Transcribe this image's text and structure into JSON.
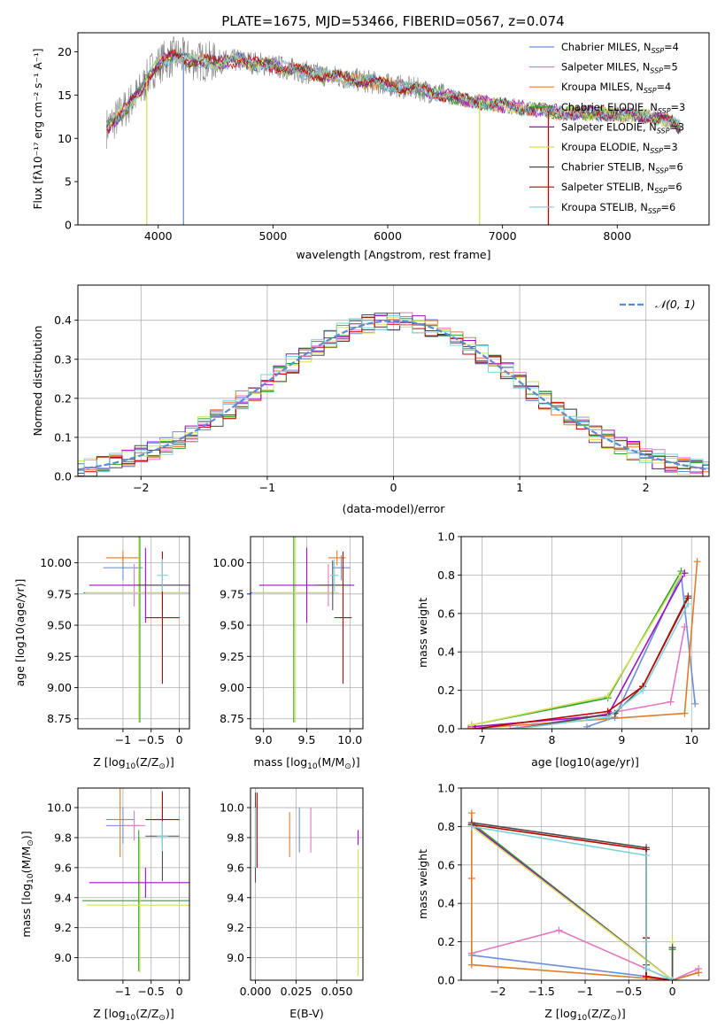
{
  "title": "PLATE=1675, MJD=53466, FIBERID=0567, z=0.074",
  "colors": {
    "Chabrier MILES": "#6b8fd6",
    "Salpeter MILES": "#e377c2",
    "Kroupa MILES": "#e07b2a",
    "Chabrier ELODIE": "#2ca02c",
    "Salpeter ELODIE": "#9b10c8",
    "Kroupa ELODIE": "#d4e157",
    "Chabrier STELIB": "#4d4d4d",
    "Salpeter STELIB": "#c00000",
    "Kroupa STELIB": "#7ad3d9",
    "data": "#808080",
    "normal": "#5b8bd6"
  },
  "chart_data": [
    {
      "id": "spectrum",
      "type": "line",
      "xlabel": "wavelength [Angstrom, rest frame]",
      "ylabel": "Flux [fλ10⁻¹⁷ erg cm⁻² s⁻¹ A⁻¹]",
      "xlim": [
        3300,
        8800
      ],
      "ylim": [
        0,
        22.2
      ],
      "xticks": [
        4000,
        5000,
        6000,
        7000,
        8000
      ],
      "yticks": [
        0,
        5,
        10,
        15,
        20
      ],
      "grid": false,
      "legend": "top-right",
      "legend_entries": [
        {
          "base": "Chabrier MILES, N",
          "n": "4"
        },
        {
          "base": "Salpeter MILES, N",
          "n": "5"
        },
        {
          "base": "Kroupa MILES, N",
          "n": "4"
        },
        {
          "base": "Chabrier ELODIE, N",
          "n": "3"
        },
        {
          "base": "Salpeter ELODIE, N",
          "n": "3"
        },
        {
          "base": "Kroupa ELODIE, N",
          "n": "3"
        },
        {
          "base": "Chabrier STELIB, N",
          "n": "6"
        },
        {
          "base": "Salpeter STELIB, N",
          "n": "6"
        },
        {
          "base": "Kroupa STELIB, N",
          "n": "6"
        }
      ],
      "legend_sub": "SSP",
      "continuum": [
        [
          3550,
          11.2
        ],
        [
          3650,
          12.5
        ],
        [
          3750,
          14.0
        ],
        [
          3850,
          15.5
        ],
        [
          3950,
          18.0
        ],
        [
          4050,
          19.0
        ],
        [
          4150,
          19.5
        ],
        [
          4300,
          19.0
        ],
        [
          4500,
          18.8
        ],
        [
          4700,
          19.0
        ],
        [
          5000,
          18.4
        ],
        [
          5300,
          17.6
        ],
        [
          5600,
          17.0
        ],
        [
          6000,
          16.2
        ],
        [
          6300,
          15.6
        ],
        [
          6600,
          14.6
        ],
        [
          7000,
          13.8
        ],
        [
          7500,
          13.0
        ],
        [
          8000,
          12.8
        ],
        [
          8300,
          12.5
        ],
        [
          8450,
          12.0
        ],
        [
          8550,
          11.3
        ]
      ],
      "spikes": [
        [
          3900,
          0
        ],
        [
          4220,
          0
        ],
        [
          6800,
          0
        ],
        [
          7400,
          0
        ]
      ]
    },
    {
      "id": "residuals",
      "type": "histogram",
      "xlabel": "(data-model)/error",
      "ylabel": "Normed distribution",
      "xlim": [
        -2.5,
        2.5
      ],
      "ylim": [
        0,
        0.49
      ],
      "xticks": [
        -2,
        -1,
        0,
        1,
        2
      ],
      "yticks": [
        0.0,
        0.1,
        0.2,
        0.3,
        0.4
      ],
      "grid": true,
      "legend": "top-right",
      "normal_label": "𝒩(0, 1)",
      "bin_width": 0.1
    },
    {
      "id": "age_vs_Z",
      "type": "errorbar",
      "xlabel_base": "Z [log",
      "xlabel_tail": "(Z/Z",
      "ylabel": "age  [log10(age/yr)]",
      "xlim": [
        -1.8,
        0.18
      ],
      "ylim": [
        8.67,
        10.21
      ],
      "xticks": [
        -1,
        -0.5,
        0
      ],
      "yticks": [
        8.75,
        9.0,
        9.25,
        9.5,
        9.75,
        10.0
      ],
      "points": [
        {
          "series": "Chabrier MILES",
          "x": -1.0,
          "y": 9.96,
          "xerr": 0.35,
          "yerr": 0.1
        },
        {
          "series": "Kroupa MILES",
          "x": -1.0,
          "y": 10.04,
          "xerr": 0.3,
          "yerr": 0.06
        },
        {
          "series": "Salpeter MILES",
          "x": -0.8,
          "y": 9.82,
          "xerr": 0.2,
          "yerr": 0.17
        },
        {
          "series": "Chabrier ELODIE",
          "x": -0.7,
          "y": 9.76,
          "xerr": 1.0,
          "yerr": 1.04
        },
        {
          "series": "Kroupa ELODIE",
          "x": -0.72,
          "y": 9.76,
          "xerr": 0.95,
          "yerr": 1.04
        },
        {
          "series": "Salpeter ELODIE",
          "x": -0.6,
          "y": 9.82,
          "xerr": 1.0,
          "yerr": 0.3
        },
        {
          "series": "Chabrier STELIB",
          "x": -0.3,
          "y": 9.82,
          "xerr": 0.45,
          "yerr": 0.2
        },
        {
          "series": "Salpeter STELIB",
          "x": -0.3,
          "y": 9.56,
          "xerr": 0.3,
          "yerr": 0.53
        },
        {
          "series": "Kroupa STELIB",
          "x": -0.3,
          "y": 9.9,
          "xerr": 0.1,
          "yerr": 0.13
        }
      ]
    },
    {
      "id": "age_vs_mass",
      "type": "errorbar",
      "xlabel_base": "mass [log",
      "xlabel_tail": "(M/M",
      "ylabel": "",
      "xlim": [
        8.85,
        10.15
      ],
      "ylim": [
        8.67,
        10.21
      ],
      "xticks": [
        9.0,
        9.5,
        10.0
      ],
      "yticks": [
        8.75,
        9.0,
        9.25,
        9.5,
        9.75,
        10.0
      ],
      "points": [
        {
          "series": "Chabrier MILES",
          "x": 9.9,
          "y": 9.96,
          "xerr": 0.1,
          "yerr": 0.1
        },
        {
          "series": "Kroupa MILES",
          "x": 9.85,
          "y": 10.04,
          "xerr": 0.1,
          "yerr": 0.06
        },
        {
          "series": "Salpeter MILES",
          "x": 9.75,
          "y": 9.82,
          "xerr": 0.1,
          "yerr": 0.17
        },
        {
          "series": "Chabrier ELODIE",
          "x": 9.35,
          "y": 9.76,
          "xerr": 0.5,
          "yerr": 1.04
        },
        {
          "series": "Kroupa ELODIE",
          "x": 9.37,
          "y": 9.76,
          "xerr": 0.5,
          "yerr": 1.04
        },
        {
          "series": "Salpeter ELODIE",
          "x": 9.5,
          "y": 9.82,
          "xerr": 0.55,
          "yerr": 0.3
        },
        {
          "series": "Chabrier STELIB",
          "x": 9.8,
          "y": 9.82,
          "xerr": 0.2,
          "yerr": 0.2
        },
        {
          "series": "Salpeter STELIB",
          "x": 9.92,
          "y": 9.56,
          "xerr": 0.1,
          "yerr": 0.53
        },
        {
          "series": "Kroupa STELIB",
          "x": 9.82,
          "y": 9.9,
          "xerr": 0.05,
          "yerr": 0.13
        }
      ]
    },
    {
      "id": "massweight_vs_age",
      "type": "line",
      "xlabel": "age  [log10(age/yr)]",
      "ylabel": "mass weight",
      "xlim": [
        6.7,
        10.25
      ],
      "ylim": [
        0,
        1
      ],
      "xticks": [
        7,
        8,
        9,
        10
      ],
      "yticks": [
        0.0,
        0.2,
        0.4,
        0.6,
        0.8,
        1.0
      ],
      "grid": true,
      "series": [
        {
          "name": "Chabrier MILES",
          "x": [
            8.5,
            8.9,
            9.85,
            10.05
          ],
          "y": [
            0.01,
            0.06,
            0.8,
            0.13
          ]
        },
        {
          "name": "Salpeter MILES",
          "x": [
            7.4,
            8.5,
            9.7,
            9.9
          ],
          "y": [
            0.0,
            0.06,
            0.14,
            0.53
          ]
        },
        {
          "name": "Kroupa MILES",
          "x": [
            6.8,
            9.9,
            10.08
          ],
          "y": [
            0.0,
            0.08,
            0.87
          ]
        },
        {
          "name": "Chabrier ELODIE",
          "x": [
            6.85,
            8.8,
            9.85
          ],
          "y": [
            0.02,
            0.16,
            0.82
          ]
        },
        {
          "name": "Salpeter ELODIE",
          "x": [
            6.85,
            8.8,
            9.9
          ],
          "y": [
            0.01,
            0.07,
            0.81
          ]
        },
        {
          "name": "Kroupa ELODIE",
          "x": [
            6.85,
            8.8,
            9.85
          ],
          "y": [
            0.02,
            0.17,
            0.8
          ]
        },
        {
          "name": "Chabrier STELIB",
          "x": [
            7.5,
            8.9,
            9.3,
            9.95
          ],
          "y": [
            0.0,
            0.08,
            0.22,
            0.69
          ]
        },
        {
          "name": "Salpeter STELIB",
          "x": [
            6.9,
            8.8,
            9.3,
            9.95
          ],
          "y": [
            0.0,
            0.09,
            0.22,
            0.68
          ]
        },
        {
          "name": "Kroupa STELIB",
          "x": [
            7.5,
            8.8,
            9.3,
            9.95
          ],
          "y": [
            0.0,
            0.06,
            0.2,
            0.65
          ]
        }
      ]
    },
    {
      "id": "mass_vs_Z",
      "type": "errorbar",
      "xlabel_base": "Z [log",
      "xlabel_tail": "(Z/Z",
      "ylabel_base": "mass [log",
      "ylabel_tail": "(M/M",
      "xlim": [
        -1.8,
        0.18
      ],
      "ylim": [
        8.85,
        10.13
      ],
      "xticks": [
        -1,
        -0.5,
        0
      ],
      "yticks": [
        9.0,
        9.2,
        9.4,
        9.6,
        9.8,
        10.0
      ],
      "points": [
        {
          "series": "Chabrier MILES",
          "x": -1.0,
          "y": 9.88,
          "xerr": 0.3,
          "yerr": 0.12
        },
        {
          "series": "Kroupa MILES",
          "x": -1.05,
          "y": 9.92,
          "xerr": 0.25,
          "yerr": 0.25
        },
        {
          "series": "Salpeter MILES",
          "x": -0.8,
          "y": 9.88,
          "xerr": 0.2,
          "yerr": 0.1
        },
        {
          "series": "Chabrier ELODIE",
          "x": -0.72,
          "y": 9.38,
          "xerr": 1.0,
          "yerr": 0.47
        },
        {
          "series": "Kroupa ELODIE",
          "x": -0.7,
          "y": 9.35,
          "xerr": 0.95,
          "yerr": 0.45
        },
        {
          "series": "Salpeter ELODIE",
          "x": -0.6,
          "y": 9.5,
          "xerr": 1.0,
          "yerr": 0.1
        },
        {
          "series": "Chabrier STELIB",
          "x": -0.3,
          "y": 9.81,
          "xerr": 0.3,
          "yerr": 0.3
        },
        {
          "series": "Salpeter STELIB",
          "x": -0.3,
          "y": 9.92,
          "xerr": 0.3,
          "yerr": 0.18
        },
        {
          "series": "Kroupa STELIB",
          "x": -0.3,
          "y": 9.81,
          "xerr": 0.1,
          "yerr": 0.1
        }
      ]
    },
    {
      "id": "mass_vs_ebv",
      "type": "errorbar",
      "xlabel": "E(B-V)",
      "ylabel": "",
      "xlim": [
        -0.003,
        0.066
      ],
      "ylim": [
        8.85,
        10.13
      ],
      "xticks": [
        0.0,
        0.025,
        0.05
      ],
      "yticks": [
        9.0,
        9.2,
        9.4,
        9.6,
        9.8,
        10.0
      ],
      "points": [
        {
          "series": "Chabrier MILES",
          "x": 0.027,
          "y": 9.85,
          "xerr": 0,
          "yerr": 0.15
        },
        {
          "series": "Salpeter MILES",
          "x": 0.034,
          "y": 9.85,
          "xerr": 0,
          "yerr": 0.15
        },
        {
          "series": "Kroupa MILES",
          "x": 0.021,
          "y": 9.82,
          "xerr": 0,
          "yerr": 0.15
        },
        {
          "series": "Chabrier ELODIE",
          "x": 0.0,
          "y": 9.92,
          "xerr": 0,
          "yerr": 0.12
        },
        {
          "series": "Kroupa ELODIE",
          "x": 0.063,
          "y": 9.3,
          "xerr": 0,
          "yerr": 0.42
        },
        {
          "series": "Salpeter ELODIE",
          "x": 0.063,
          "y": 9.8,
          "xerr": 0,
          "yerr": 0.05
        },
        {
          "series": "Chabrier STELIB",
          "x": 0.0,
          "y": 9.8,
          "xerr": 0,
          "yerr": 0.3
        },
        {
          "series": "Salpeter STELIB",
          "x": 0.001,
          "y": 9.85,
          "xerr": 0,
          "yerr": 0.25
        },
        {
          "series": "Kroupa STELIB",
          "x": 0.0,
          "y": 9.8,
          "xerr": 0,
          "yerr": 0.2
        }
      ]
    },
    {
      "id": "massweight_vs_Z",
      "type": "line",
      "xlabel_base": "Z [log",
      "xlabel_tail": "(Z/Z",
      "ylabel": "mass weight",
      "xlim": [
        -2.42,
        0.42
      ],
      "ylim": [
        0,
        1
      ],
      "xticks": [
        -2.0,
        -1.5,
        -1.0,
        -0.5,
        0.0
      ],
      "yticks": [
        0.0,
        0.2,
        0.4,
        0.6,
        0.8,
        1.0
      ],
      "grid": true,
      "series": [
        {
          "name": "Chabrier MILES",
          "x": [
            -2.3,
            -0.3,
            0.0,
            0.3
          ],
          "y": [
            0.13,
            0.02,
            0.0,
            0.04
          ]
        },
        {
          "name": "Salpeter MILES",
          "x": [
            -2.3,
            -1.3,
            0.0,
            0.3
          ],
          "y": [
            0.14,
            0.26,
            0.0,
            0.06
          ]
        },
        {
          "name": "Kroupa MILES",
          "x": [
            -2.3,
            -2.3,
            -2.3,
            0.0,
            0.3
          ],
          "y": [
            0.87,
            0.53,
            0.08,
            0.0,
            0.04
          ]
        },
        {
          "name": "Chabrier ELODIE",
          "x": [
            -2.3,
            0.0,
            0.0
          ],
          "y": [
            0.82,
            0.0,
            0.16
          ]
        },
        {
          "name": "Salpeter ELODIE",
          "x": [
            -2.3,
            0.0
          ],
          "y": [
            0.81,
            0.0
          ]
        },
        {
          "name": "Kroupa ELODIE",
          "x": [
            -2.3,
            0.0,
            0.0
          ],
          "y": [
            0.8,
            0.0,
            0.2
          ]
        },
        {
          "name": "Chabrier STELIB",
          "x": [
            -2.3,
            -0.3,
            -0.3,
            -0.3,
            -0.3,
            0.0,
            0.0
          ],
          "y": [
            0.82,
            0.69,
            0.22,
            0.08,
            0.02,
            0.0,
            0.17
          ]
        },
        {
          "name": "Salpeter STELIB",
          "x": [
            -2.3,
            -0.3,
            -0.3,
            -0.3,
            0.0
          ],
          "y": [
            0.81,
            0.68,
            0.22,
            0.02,
            0.0
          ]
        },
        {
          "name": "Kroupa STELIB",
          "x": [
            -2.3,
            -0.3,
            -0.3,
            -0.3,
            0.0
          ],
          "y": [
            0.8,
            0.65,
            0.2,
            0.06,
            0.0
          ]
        }
      ]
    }
  ]
}
